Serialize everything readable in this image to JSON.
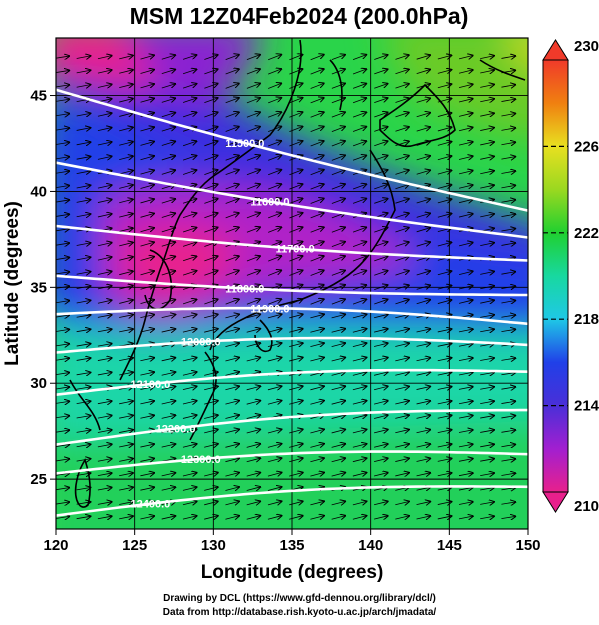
{
  "title": "MSM 12Z04Feb2024 (200.0hPa)",
  "map": {
    "lon_range": [
      120,
      150
    ],
    "lat_range": [
      22.4,
      48
    ],
    "xticks": [
      "120",
      "125",
      "130",
      "135",
      "140",
      "145",
      "150"
    ],
    "yticks": [
      "25",
      "30",
      "35",
      "40",
      "45"
    ],
    "xlabel": "Longitude (degrees)",
    "ylabel": "Latitude (degrees)",
    "grid": true,
    "field": "temperature (shaded), geopotential height (white contours), wind (arrows)",
    "arrow_direction": "west-to-east"
  },
  "colorbar": {
    "min": 210,
    "max": 230,
    "ticks": [
      "230",
      "226",
      "222",
      "218",
      "214",
      "210"
    ],
    "colors": [
      "#e8208c",
      "#a21fd0",
      "#4a2fd8",
      "#2040e8",
      "#1fc8e6",
      "#18d8a0",
      "#20d030",
      "#9ad820",
      "#e8e020",
      "#f08010",
      "#f03a2a"
    ]
  },
  "contours": [
    {
      "label": "11500.0",
      "value": 11500,
      "lat_west": 45.3,
      "lat_east": 39.0
    },
    {
      "label": "11600.0",
      "value": 11600,
      "lat_west": 41.5,
      "lat_east": 37.6
    },
    {
      "label": "11700.0",
      "value": 11700,
      "lat_west": 38.2,
      "lat_east": 36.4
    },
    {
      "label": "11800.0",
      "value": 11800,
      "lat_west": 35.6,
      "lat_east": 34.6
    },
    {
      "label": "11900.0",
      "value": 11900,
      "lat_west": 33.6,
      "lat_east": 33.1
    },
    {
      "label": "12000.0",
      "value": 12000,
      "lat_west": 31.6,
      "lat_east": 32.0
    },
    {
      "label": "12100.0",
      "value": 12100,
      "lat_west": 29.4,
      "lat_east": 30.6
    },
    {
      "label": "12200.0",
      "value": 12200,
      "lat_west": 26.8,
      "lat_east": 28.6
    },
    {
      "label": "12300.0",
      "value": 12300,
      "lat_west": 25.3,
      "lat_east": 26.3
    },
    {
      "label": "12400.0",
      "value": 12400,
      "lat_west": 23.1,
      "lat_east": 24.6
    }
  ],
  "credits": {
    "line1": "Drawing by DCL (https://www.gfd-dennou.org/library/dcl/)",
    "line2": "Data from http://database.rish.kyoto-u.ac.jp/arch/jmadata/"
  }
}
